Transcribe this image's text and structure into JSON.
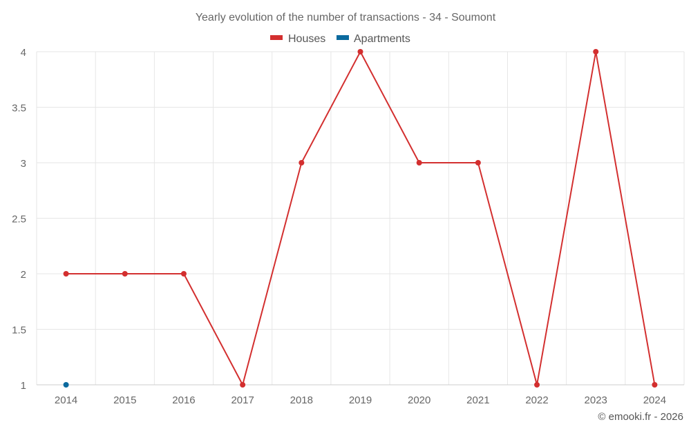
{
  "chart_data": {
    "type": "line",
    "title": "Yearly evolution of the number of transactions - 34 - Soumont",
    "x": [
      "2014",
      "2015",
      "2016",
      "2017",
      "2018",
      "2019",
      "2020",
      "2021",
      "2022",
      "2023",
      "2024"
    ],
    "ylim": [
      1,
      4
    ],
    "yticks": [
      "1",
      "1.5",
      "2",
      "2.5",
      "3",
      "3.5",
      "4"
    ],
    "grid": true,
    "legend_position": "top-center",
    "series": [
      {
        "name": "Houses",
        "color": "#d32f2f",
        "values": [
          2,
          2,
          2,
          1,
          3,
          4,
          3,
          3,
          1,
          4,
          1
        ]
      },
      {
        "name": "Apartments",
        "color": "#0b6a9e",
        "values": [
          1,
          null,
          null,
          null,
          null,
          null,
          null,
          null,
          null,
          null,
          null
        ]
      }
    ],
    "credit": "© emooki.fr - 2026"
  }
}
